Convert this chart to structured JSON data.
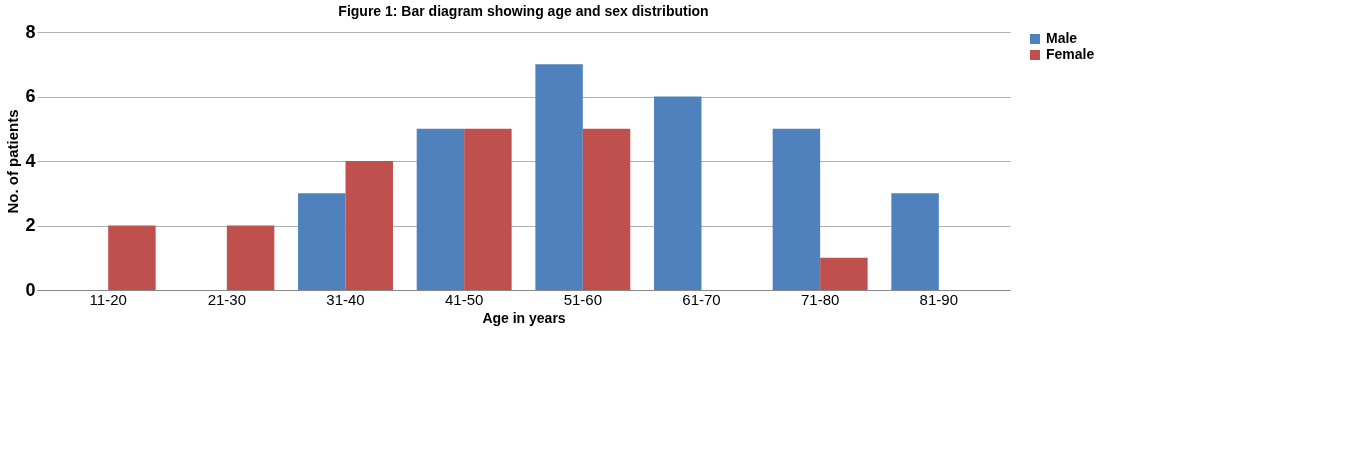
{
  "chart_data": {
    "type": "bar",
    "title": "Figure 1: Bar diagram showing age and sex distribution",
    "xlabel": "Age in years",
    "ylabel": "No. of patients",
    "categories": [
      "11-20",
      "21-30",
      "31-40",
      "41-50",
      "51-60",
      "61-70",
      "71-80",
      "81-90"
    ],
    "series": [
      {
        "name": "Male",
        "color": "#4f81bd",
        "values": [
          0,
          0,
          3,
          5,
          7,
          6,
          5,
          3
        ]
      },
      {
        "name": "Female",
        "color": "#c0504d",
        "values": [
          2,
          2,
          4,
          5,
          5,
          0,
          1,
          0
        ]
      }
    ],
    "ylim": [
      0,
      8
    ],
    "yticks": [
      0,
      2,
      4,
      6,
      8
    ],
    "grid": "y",
    "legend": "right"
  }
}
